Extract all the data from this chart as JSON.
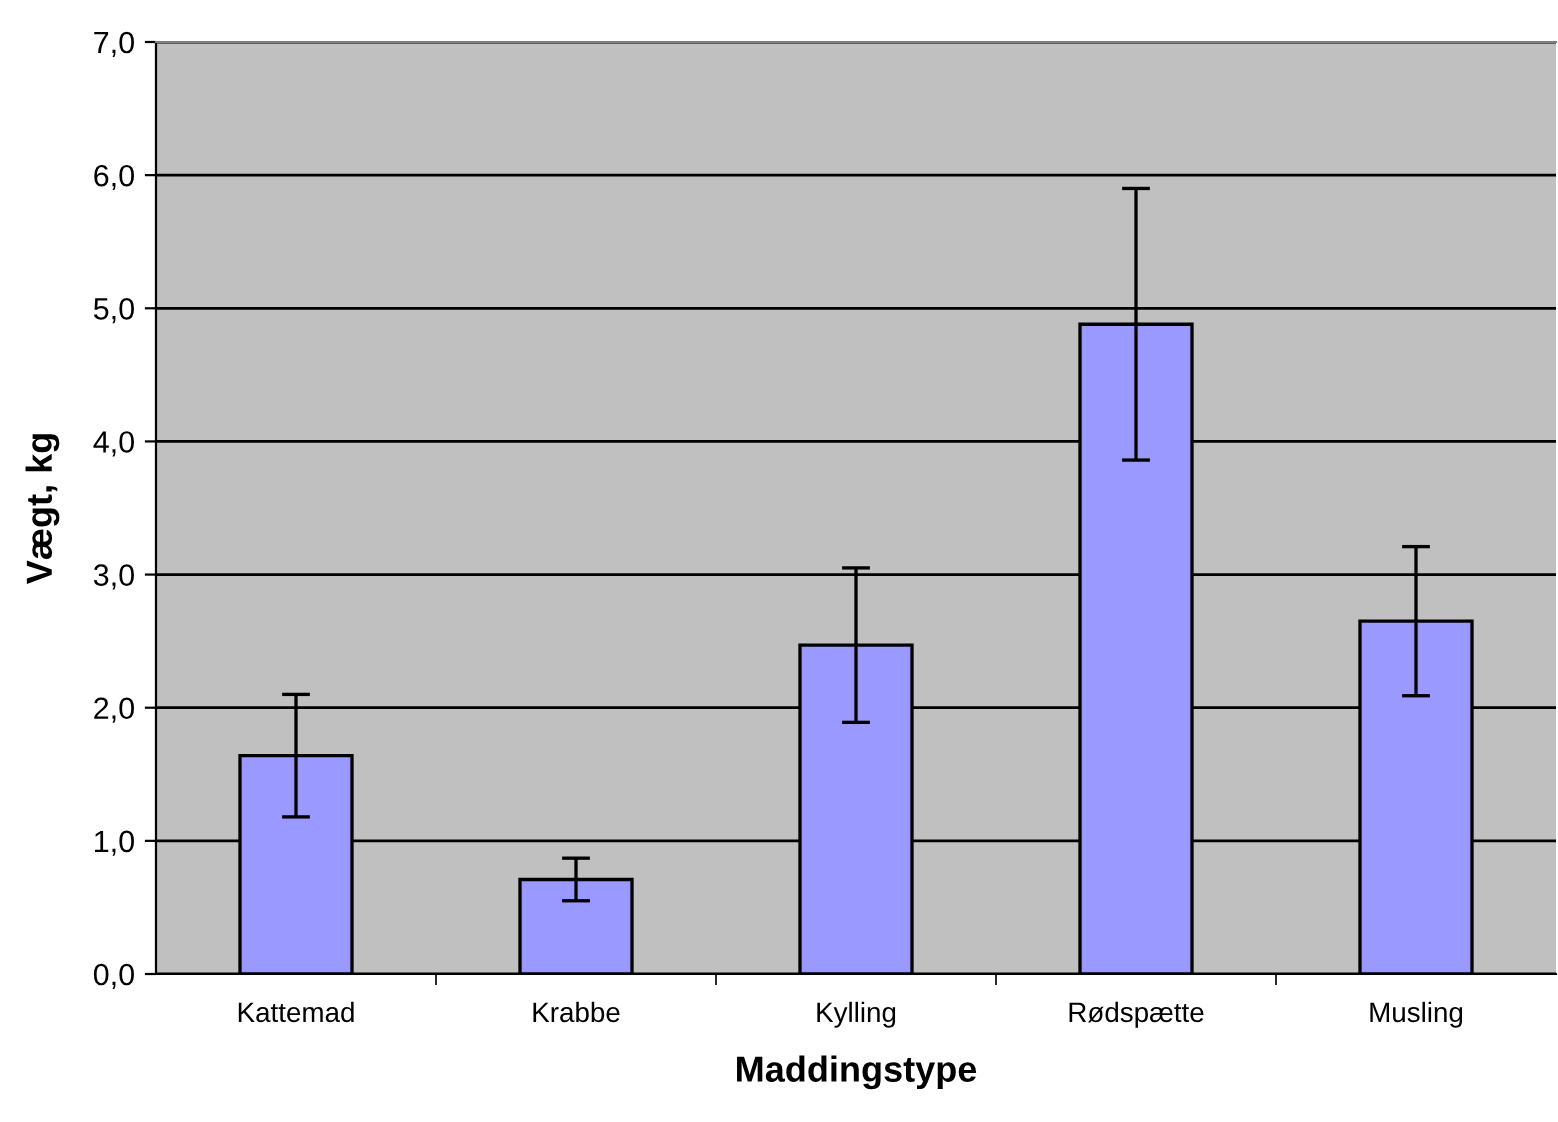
{
  "chart_data": {
    "type": "bar",
    "xlabel": "Maddingstype",
    "ylabel": "Vægt, kg",
    "categories": [
      "Kattemad",
      "Krabbe",
      "Kylling",
      "Rødspætte",
      "Musling"
    ],
    "values": [
      1.64,
      0.71,
      2.47,
      4.88,
      2.65
    ],
    "errors": [
      0.46,
      0.16,
      0.58,
      1.02,
      0.56
    ],
    "color": "#9999ff",
    "ylim": [
      0,
      7
    ],
    "yticks": [
      {
        "value": 0,
        "label": "0,0"
      },
      {
        "value": 1,
        "label": "1,0"
      },
      {
        "value": 2,
        "label": "2,0"
      },
      {
        "value": 3,
        "label": "3,0"
      },
      {
        "value": 4,
        "label": "4,0"
      },
      {
        "value": 5,
        "label": "5,0"
      },
      {
        "value": 6,
        "label": "6,0"
      },
      {
        "value": 7,
        "label": "7,0"
      }
    ],
    "grid": "y"
  }
}
